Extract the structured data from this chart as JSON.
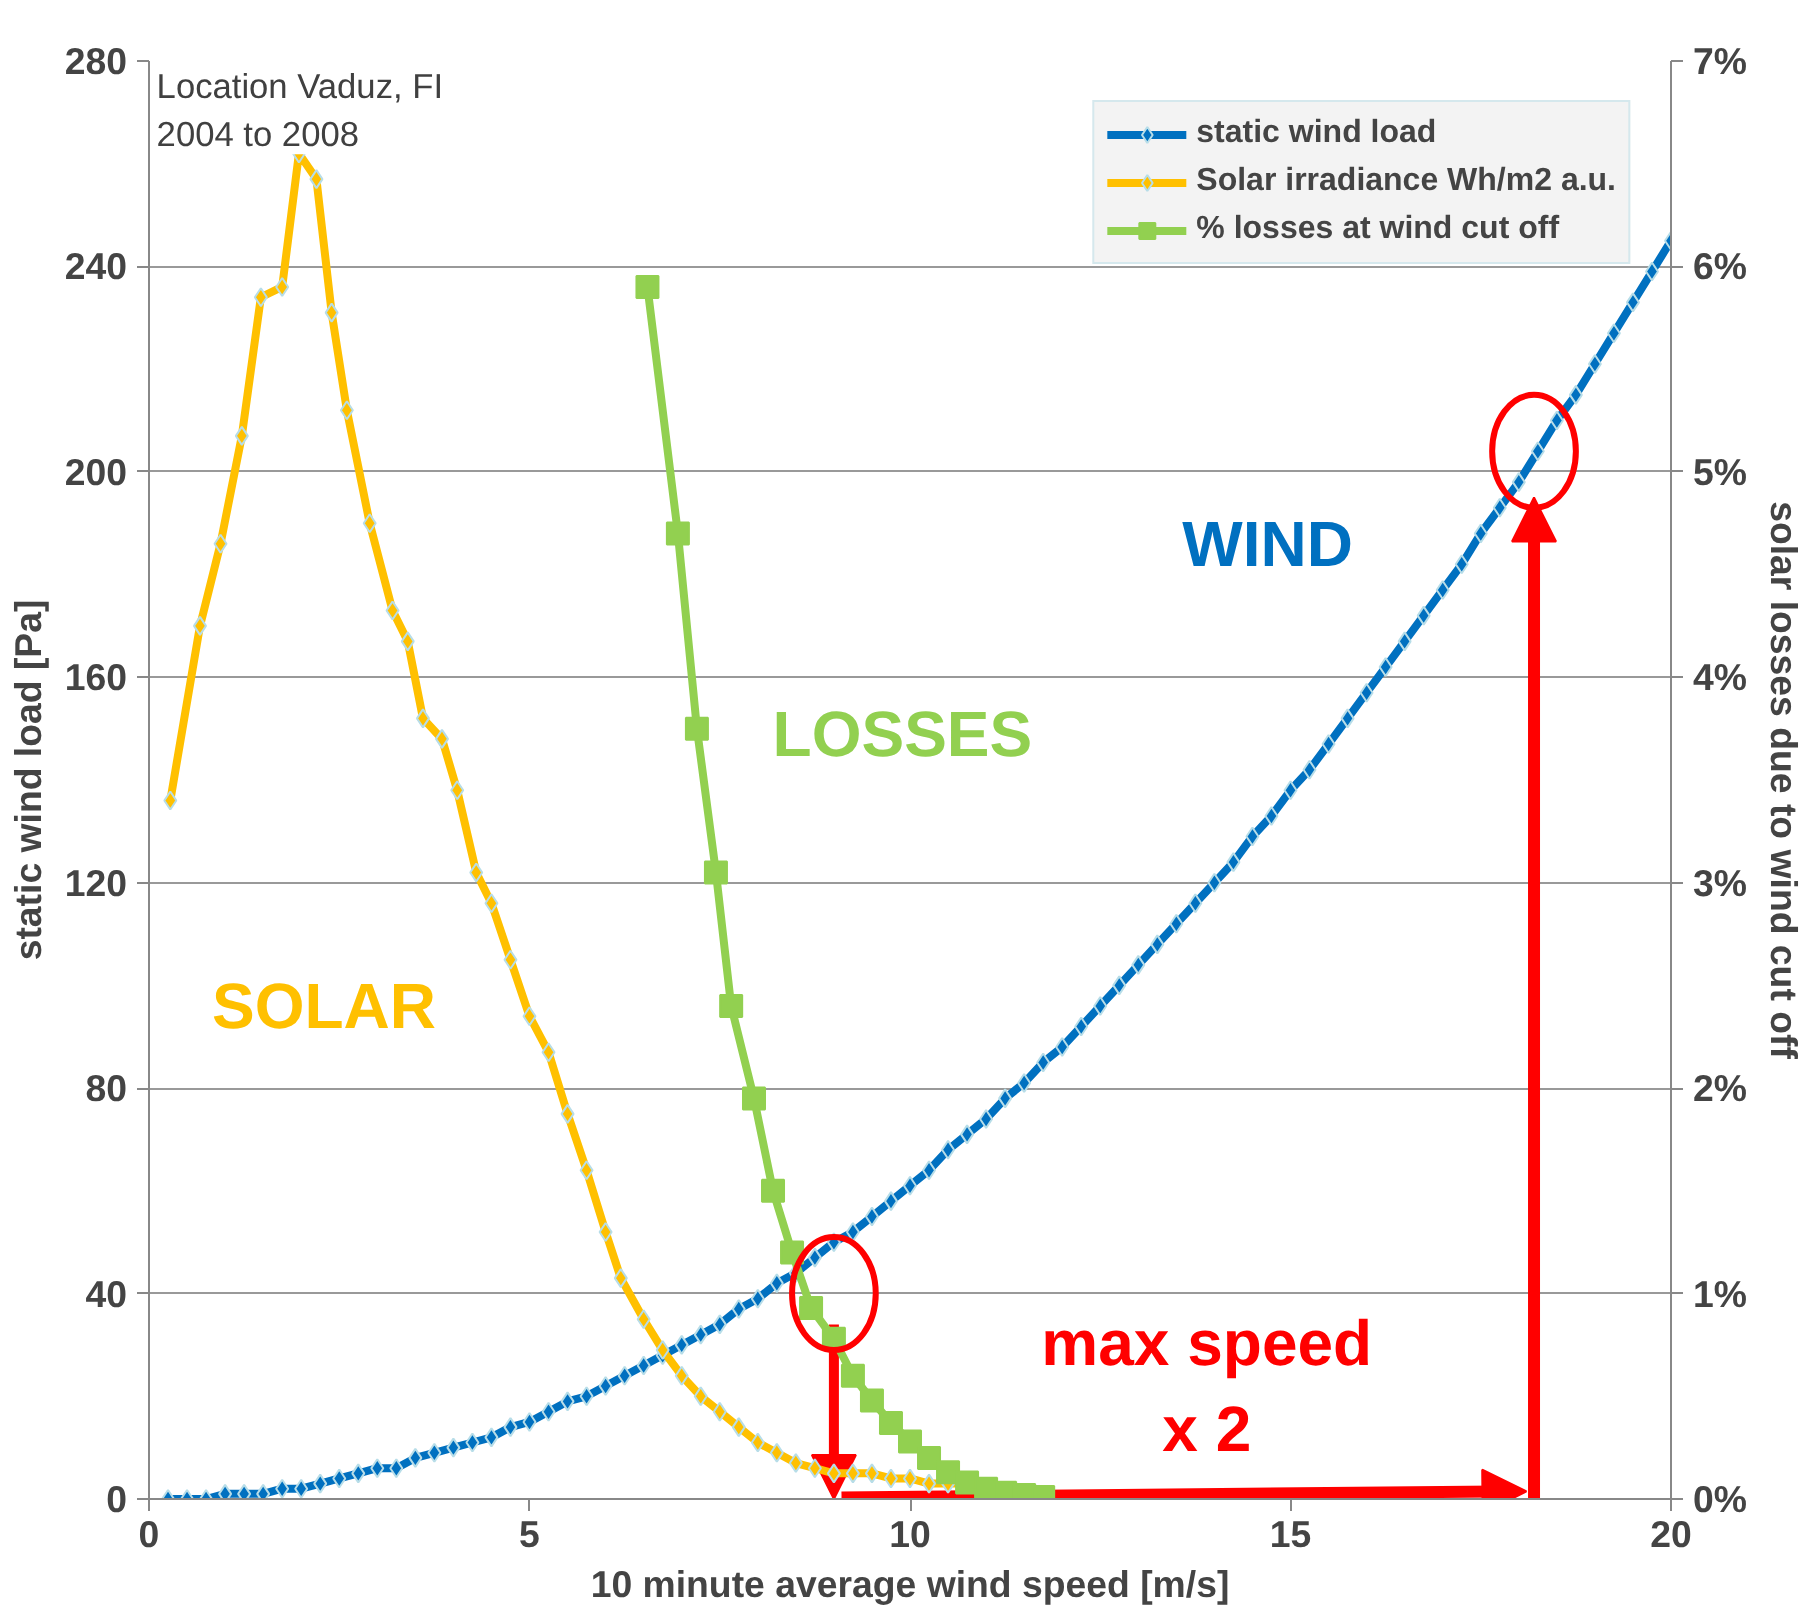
{
  "chart_data": {
    "type": "line",
    "xlabel": "10 minute average wind speed [m/s]",
    "ylabel": "static wind load [Pa]",
    "y2label": "solar losses due to wind cut off",
    "xlim": [
      0,
      20
    ],
    "xticks": [
      0,
      5,
      10,
      15,
      20
    ],
    "ylim": [
      0,
      280
    ],
    "yticks": [
      0,
      40,
      80,
      120,
      160,
      200,
      240,
      280
    ],
    "y2lim": [
      0,
      7
    ],
    "y2ticks": [
      {
        "value": 0,
        "label": "0%"
      },
      {
        "value": 1,
        "label": "1%"
      },
      {
        "value": 2,
        "label": "2%"
      },
      {
        "value": 3,
        "label": "3%"
      },
      {
        "value": 4,
        "label": "4%"
      },
      {
        "value": 5,
        "label": "5%"
      },
      {
        "value": 6,
        "label": "6%"
      },
      {
        "value": 7,
        "label": "7%"
      }
    ],
    "grid": "y",
    "legend": "top right",
    "series": [
      {
        "name": "static wind load",
        "color": "#0070c0",
        "marker": "diamond",
        "x": [
          0.25,
          0.5,
          0.75,
          1,
          1.25,
          1.5,
          1.75,
          2,
          2.25,
          2.5,
          2.75,
          3,
          3.25,
          3.5,
          3.75,
          4,
          4.25,
          4.5,
          4.75,
          5,
          5.25,
          5.5,
          5.75,
          6,
          6.25,
          6.5,
          6.75,
          7,
          7.25,
          7.5,
          7.75,
          8,
          8.25,
          8.5,
          8.75,
          9,
          9.25,
          9.5,
          9.75,
          10,
          10.25,
          10.5,
          10.75,
          11,
          11.25,
          11.5,
          11.75,
          12,
          12.25,
          12.5,
          12.75,
          13,
          13.25,
          13.5,
          13.75,
          14,
          14.25,
          14.5,
          14.75,
          15,
          15.25,
          15.5,
          15.75,
          16,
          16.25,
          16.5,
          16.75,
          17,
          17.25,
          17.5,
          17.75,
          18,
          18.25,
          18.5,
          18.75,
          19,
          19.25,
          19.5,
          19.75,
          20
        ],
        "values": [
          0,
          0,
          0,
          1,
          1,
          1,
          2,
          2,
          3,
          4,
          5,
          6,
          6,
          8,
          9,
          10,
          11,
          12,
          14,
          15,
          17,
          19,
          20,
          22,
          24,
          26,
          28,
          30,
          32,
          34,
          37,
          39,
          42,
          44,
          47,
          50,
          52,
          55,
          58,
          61,
          64,
          68,
          71,
          74,
          78,
          81,
          85,
          88,
          92,
          96,
          100,
          104,
          108,
          112,
          116,
          120,
          124,
          129,
          133,
          138,
          142,
          147,
          152,
          157,
          162,
          167,
          172,
          177,
          182,
          188,
          193,
          198,
          204,
          210,
          215,
          221,
          227,
          233,
          239,
          245
        ]
      },
      {
        "name": "Solar irradiance Wh/m2 a.u.",
        "color": "#ffc000",
        "marker": "diamond",
        "x": [
          0.28,
          0.67,
          0.94,
          1.22,
          1.47,
          1.75,
          1.97,
          2.2,
          2.4,
          2.6,
          2.9,
          3.2,
          3.4,
          3.6,
          3.85,
          4.05,
          4.3,
          4.5,
          4.75,
          5.0,
          5.25,
          5.5,
          5.75,
          6.0,
          6.2,
          6.5,
          6.75,
          7.0,
          7.25,
          7.5,
          7.75,
          8.0,
          8.25,
          8.5,
          8.75,
          9.0,
          9.25,
          9.5,
          9.75,
          10.0,
          10.25,
          10.5,
          10.75,
          11.0
        ],
        "values": [
          136,
          170,
          186,
          207,
          234,
          236,
          262,
          257,
          231,
          212,
          190,
          173,
          167,
          152,
          148,
          138,
          122,
          116,
          105,
          94,
          87,
          75,
          64,
          52,
          43,
          35,
          29,
          24,
          20,
          17,
          14,
          11,
          9,
          7,
          6,
          5,
          5,
          5,
          4,
          4,
          3,
          3,
          3,
          2
        ]
      },
      {
        "name": "% losses at wind cut off",
        "color": "#92d050",
        "marker": "square",
        "axis": "y2",
        "x": [
          6.55,
          6.95,
          7.2,
          7.45,
          7.65,
          7.95,
          8.2,
          8.45,
          8.7,
          9.0,
          9.25,
          9.5,
          9.75,
          10.0,
          10.25,
          10.5,
          10.75,
          11.0,
          11.25,
          11.5,
          11.75
        ],
        "values": [
          5.9,
          4.7,
          3.75,
          3.05,
          2.4,
          1.95,
          1.5,
          1.2,
          0.93,
          0.78,
          0.6,
          0.48,
          0.37,
          0.28,
          0.2,
          0.13,
          0.08,
          0.05,
          0.03,
          0.02,
          0.01
        ]
      }
    ],
    "annotations": [
      "Location Vaduz, FI\n2004 to 2008",
      "SOLAR",
      "LOSSES",
      "WIND",
      "max speed\nx 2"
    ]
  }
}
